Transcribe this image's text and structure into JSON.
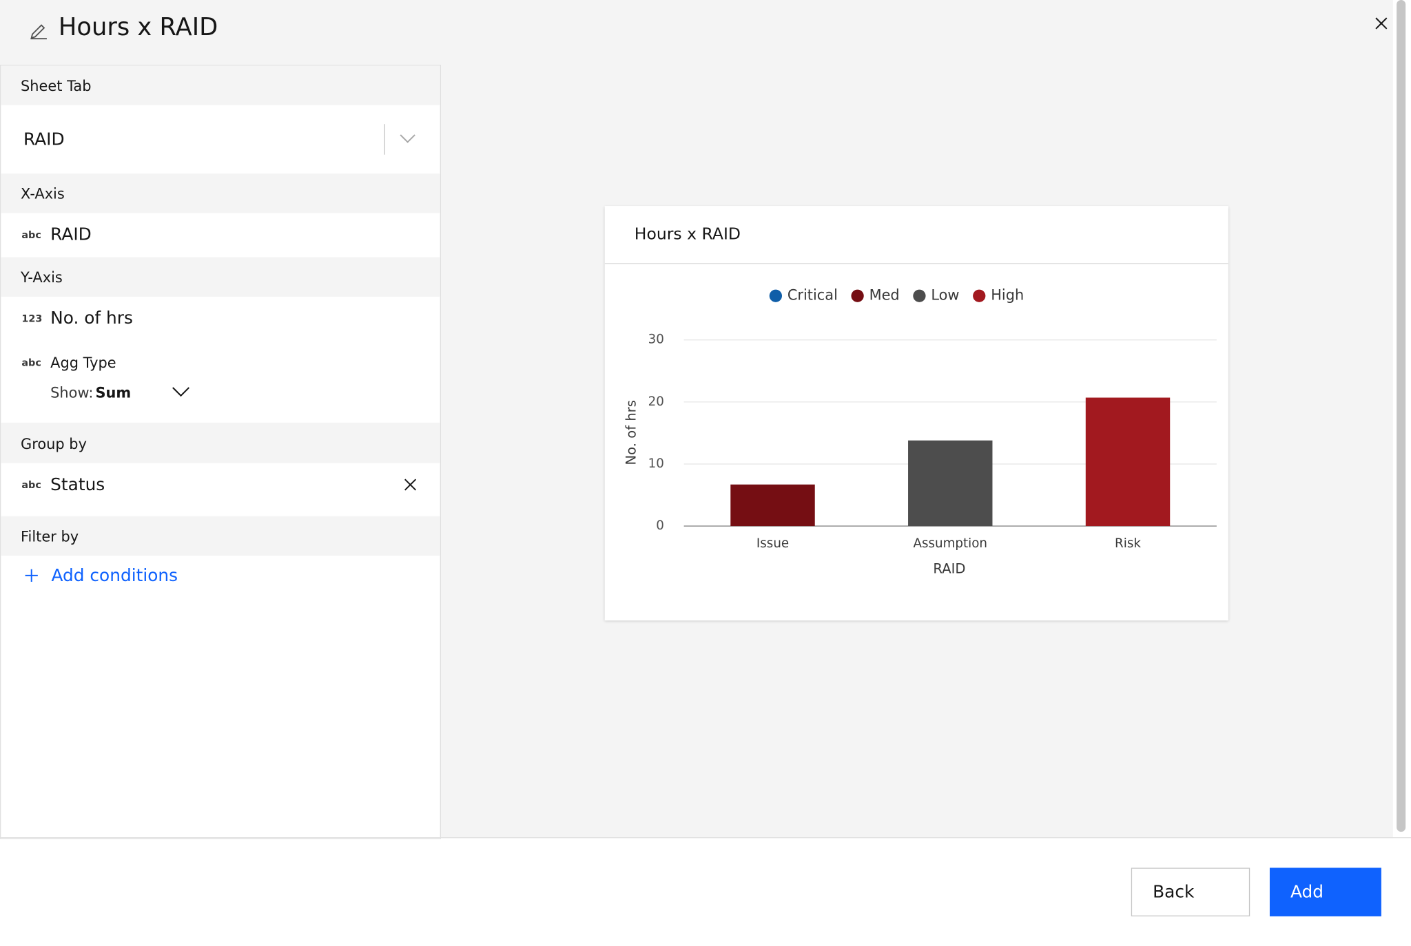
{
  "header": {
    "title": "Hours x RAID"
  },
  "sidebar": {
    "sheet_tab": {
      "label": "Sheet Tab",
      "value": "RAID"
    },
    "x_axis": {
      "label": "X-Axis",
      "type": "abc",
      "field": "RAID"
    },
    "y_axis": {
      "label": "Y-Axis",
      "type": "123",
      "field": "No. of hrs",
      "agg_type": "abc",
      "agg_label": "Agg Type",
      "show_label": "Show:",
      "show_value": "Sum"
    },
    "group_by": {
      "label": "Group by",
      "type": "abc",
      "field": "Status"
    },
    "filter_by": {
      "label": "Filter by",
      "action": "Add conditions"
    }
  },
  "footer": {
    "back": "Back",
    "add": "Add"
  },
  "chart_data": {
    "type": "bar",
    "title": "Hours x RAID",
    "x_label": "RAID",
    "y_label": "No. of hrs",
    "categories": [
      "Issue",
      "Assumption",
      "Risk"
    ],
    "series": [
      {
        "name": "Critical",
        "color": "#0f5ea8",
        "values": [
          null,
          null,
          null
        ]
      },
      {
        "name": "Med",
        "color": "#750e13",
        "values": [
          6.7,
          null,
          null
        ]
      },
      {
        "name": "Low",
        "color": "#4d4d4d",
        "values": [
          null,
          13.8,
          null
        ]
      },
      {
        "name": "High",
        "color": "#a2191f",
        "values": [
          null,
          null,
          20.7
        ]
      }
    ],
    "stacked": true,
    "ylim": [
      0,
      30
    ],
    "yticks": [
      0,
      10,
      20,
      30
    ],
    "grid": true,
    "legend": "top"
  }
}
